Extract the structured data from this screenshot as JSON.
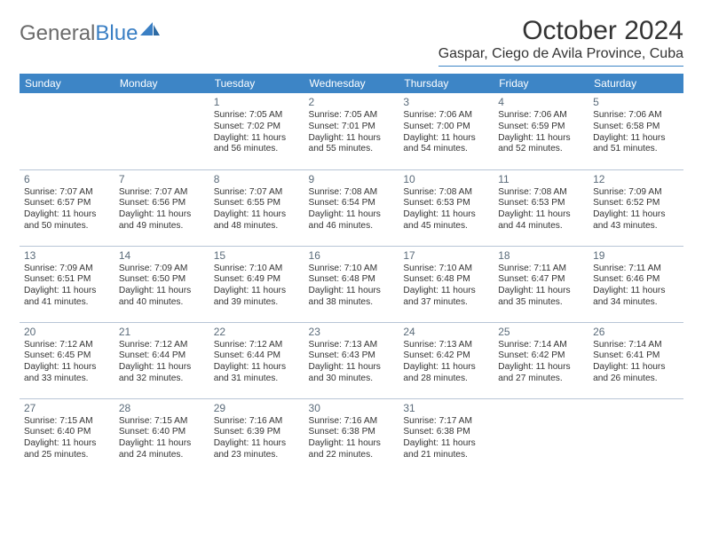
{
  "logo": {
    "text1": "General",
    "text2": "Blue"
  },
  "header": {
    "title": "October 2024",
    "location": "Gaspar, Ciego de Avila Province, Cuba"
  },
  "dayHeaders": [
    "Sunday",
    "Monday",
    "Tuesday",
    "Wednesday",
    "Thursday",
    "Friday",
    "Saturday"
  ],
  "colors": {
    "headerBg": "#3d85c6",
    "headerText": "#ffffff",
    "border": "#b8c5d6",
    "daynum": "#5a6b7a",
    "text": "#333333",
    "logoGray": "#6b6b6b",
    "logoBlue": "#3a7fc4"
  },
  "weeks": [
    [
      null,
      null,
      {
        "n": "1",
        "sr": "7:05 AM",
        "ss": "7:02 PM",
        "dl": "11 hours and 56 minutes."
      },
      {
        "n": "2",
        "sr": "7:05 AM",
        "ss": "7:01 PM",
        "dl": "11 hours and 55 minutes."
      },
      {
        "n": "3",
        "sr": "7:06 AM",
        "ss": "7:00 PM",
        "dl": "11 hours and 54 minutes."
      },
      {
        "n": "4",
        "sr": "7:06 AM",
        "ss": "6:59 PM",
        "dl": "11 hours and 52 minutes."
      },
      {
        "n": "5",
        "sr": "7:06 AM",
        "ss": "6:58 PM",
        "dl": "11 hours and 51 minutes."
      }
    ],
    [
      {
        "n": "6",
        "sr": "7:07 AM",
        "ss": "6:57 PM",
        "dl": "11 hours and 50 minutes."
      },
      {
        "n": "7",
        "sr": "7:07 AM",
        "ss": "6:56 PM",
        "dl": "11 hours and 49 minutes."
      },
      {
        "n": "8",
        "sr": "7:07 AM",
        "ss": "6:55 PM",
        "dl": "11 hours and 48 minutes."
      },
      {
        "n": "9",
        "sr": "7:08 AM",
        "ss": "6:54 PM",
        "dl": "11 hours and 46 minutes."
      },
      {
        "n": "10",
        "sr": "7:08 AM",
        "ss": "6:53 PM",
        "dl": "11 hours and 45 minutes."
      },
      {
        "n": "11",
        "sr": "7:08 AM",
        "ss": "6:53 PM",
        "dl": "11 hours and 44 minutes."
      },
      {
        "n": "12",
        "sr": "7:09 AM",
        "ss": "6:52 PM",
        "dl": "11 hours and 43 minutes."
      }
    ],
    [
      {
        "n": "13",
        "sr": "7:09 AM",
        "ss": "6:51 PM",
        "dl": "11 hours and 41 minutes."
      },
      {
        "n": "14",
        "sr": "7:09 AM",
        "ss": "6:50 PM",
        "dl": "11 hours and 40 minutes."
      },
      {
        "n": "15",
        "sr": "7:10 AM",
        "ss": "6:49 PM",
        "dl": "11 hours and 39 minutes."
      },
      {
        "n": "16",
        "sr": "7:10 AM",
        "ss": "6:48 PM",
        "dl": "11 hours and 38 minutes."
      },
      {
        "n": "17",
        "sr": "7:10 AM",
        "ss": "6:48 PM",
        "dl": "11 hours and 37 minutes."
      },
      {
        "n": "18",
        "sr": "7:11 AM",
        "ss": "6:47 PM",
        "dl": "11 hours and 35 minutes."
      },
      {
        "n": "19",
        "sr": "7:11 AM",
        "ss": "6:46 PM",
        "dl": "11 hours and 34 minutes."
      }
    ],
    [
      {
        "n": "20",
        "sr": "7:12 AM",
        "ss": "6:45 PM",
        "dl": "11 hours and 33 minutes."
      },
      {
        "n": "21",
        "sr": "7:12 AM",
        "ss": "6:44 PM",
        "dl": "11 hours and 32 minutes."
      },
      {
        "n": "22",
        "sr": "7:12 AM",
        "ss": "6:44 PM",
        "dl": "11 hours and 31 minutes."
      },
      {
        "n": "23",
        "sr": "7:13 AM",
        "ss": "6:43 PM",
        "dl": "11 hours and 30 minutes."
      },
      {
        "n": "24",
        "sr": "7:13 AM",
        "ss": "6:42 PM",
        "dl": "11 hours and 28 minutes."
      },
      {
        "n": "25",
        "sr": "7:14 AM",
        "ss": "6:42 PM",
        "dl": "11 hours and 27 minutes."
      },
      {
        "n": "26",
        "sr": "7:14 AM",
        "ss": "6:41 PM",
        "dl": "11 hours and 26 minutes."
      }
    ],
    [
      {
        "n": "27",
        "sr": "7:15 AM",
        "ss": "6:40 PM",
        "dl": "11 hours and 25 minutes."
      },
      {
        "n": "28",
        "sr": "7:15 AM",
        "ss": "6:40 PM",
        "dl": "11 hours and 24 minutes."
      },
      {
        "n": "29",
        "sr": "7:16 AM",
        "ss": "6:39 PM",
        "dl": "11 hours and 23 minutes."
      },
      {
        "n": "30",
        "sr": "7:16 AM",
        "ss": "6:38 PM",
        "dl": "11 hours and 22 minutes."
      },
      {
        "n": "31",
        "sr": "7:17 AM",
        "ss": "6:38 PM",
        "dl": "11 hours and 21 minutes."
      },
      null,
      null
    ]
  ],
  "labels": {
    "sunrise": "Sunrise:",
    "sunset": "Sunset:",
    "daylight": "Daylight:"
  }
}
